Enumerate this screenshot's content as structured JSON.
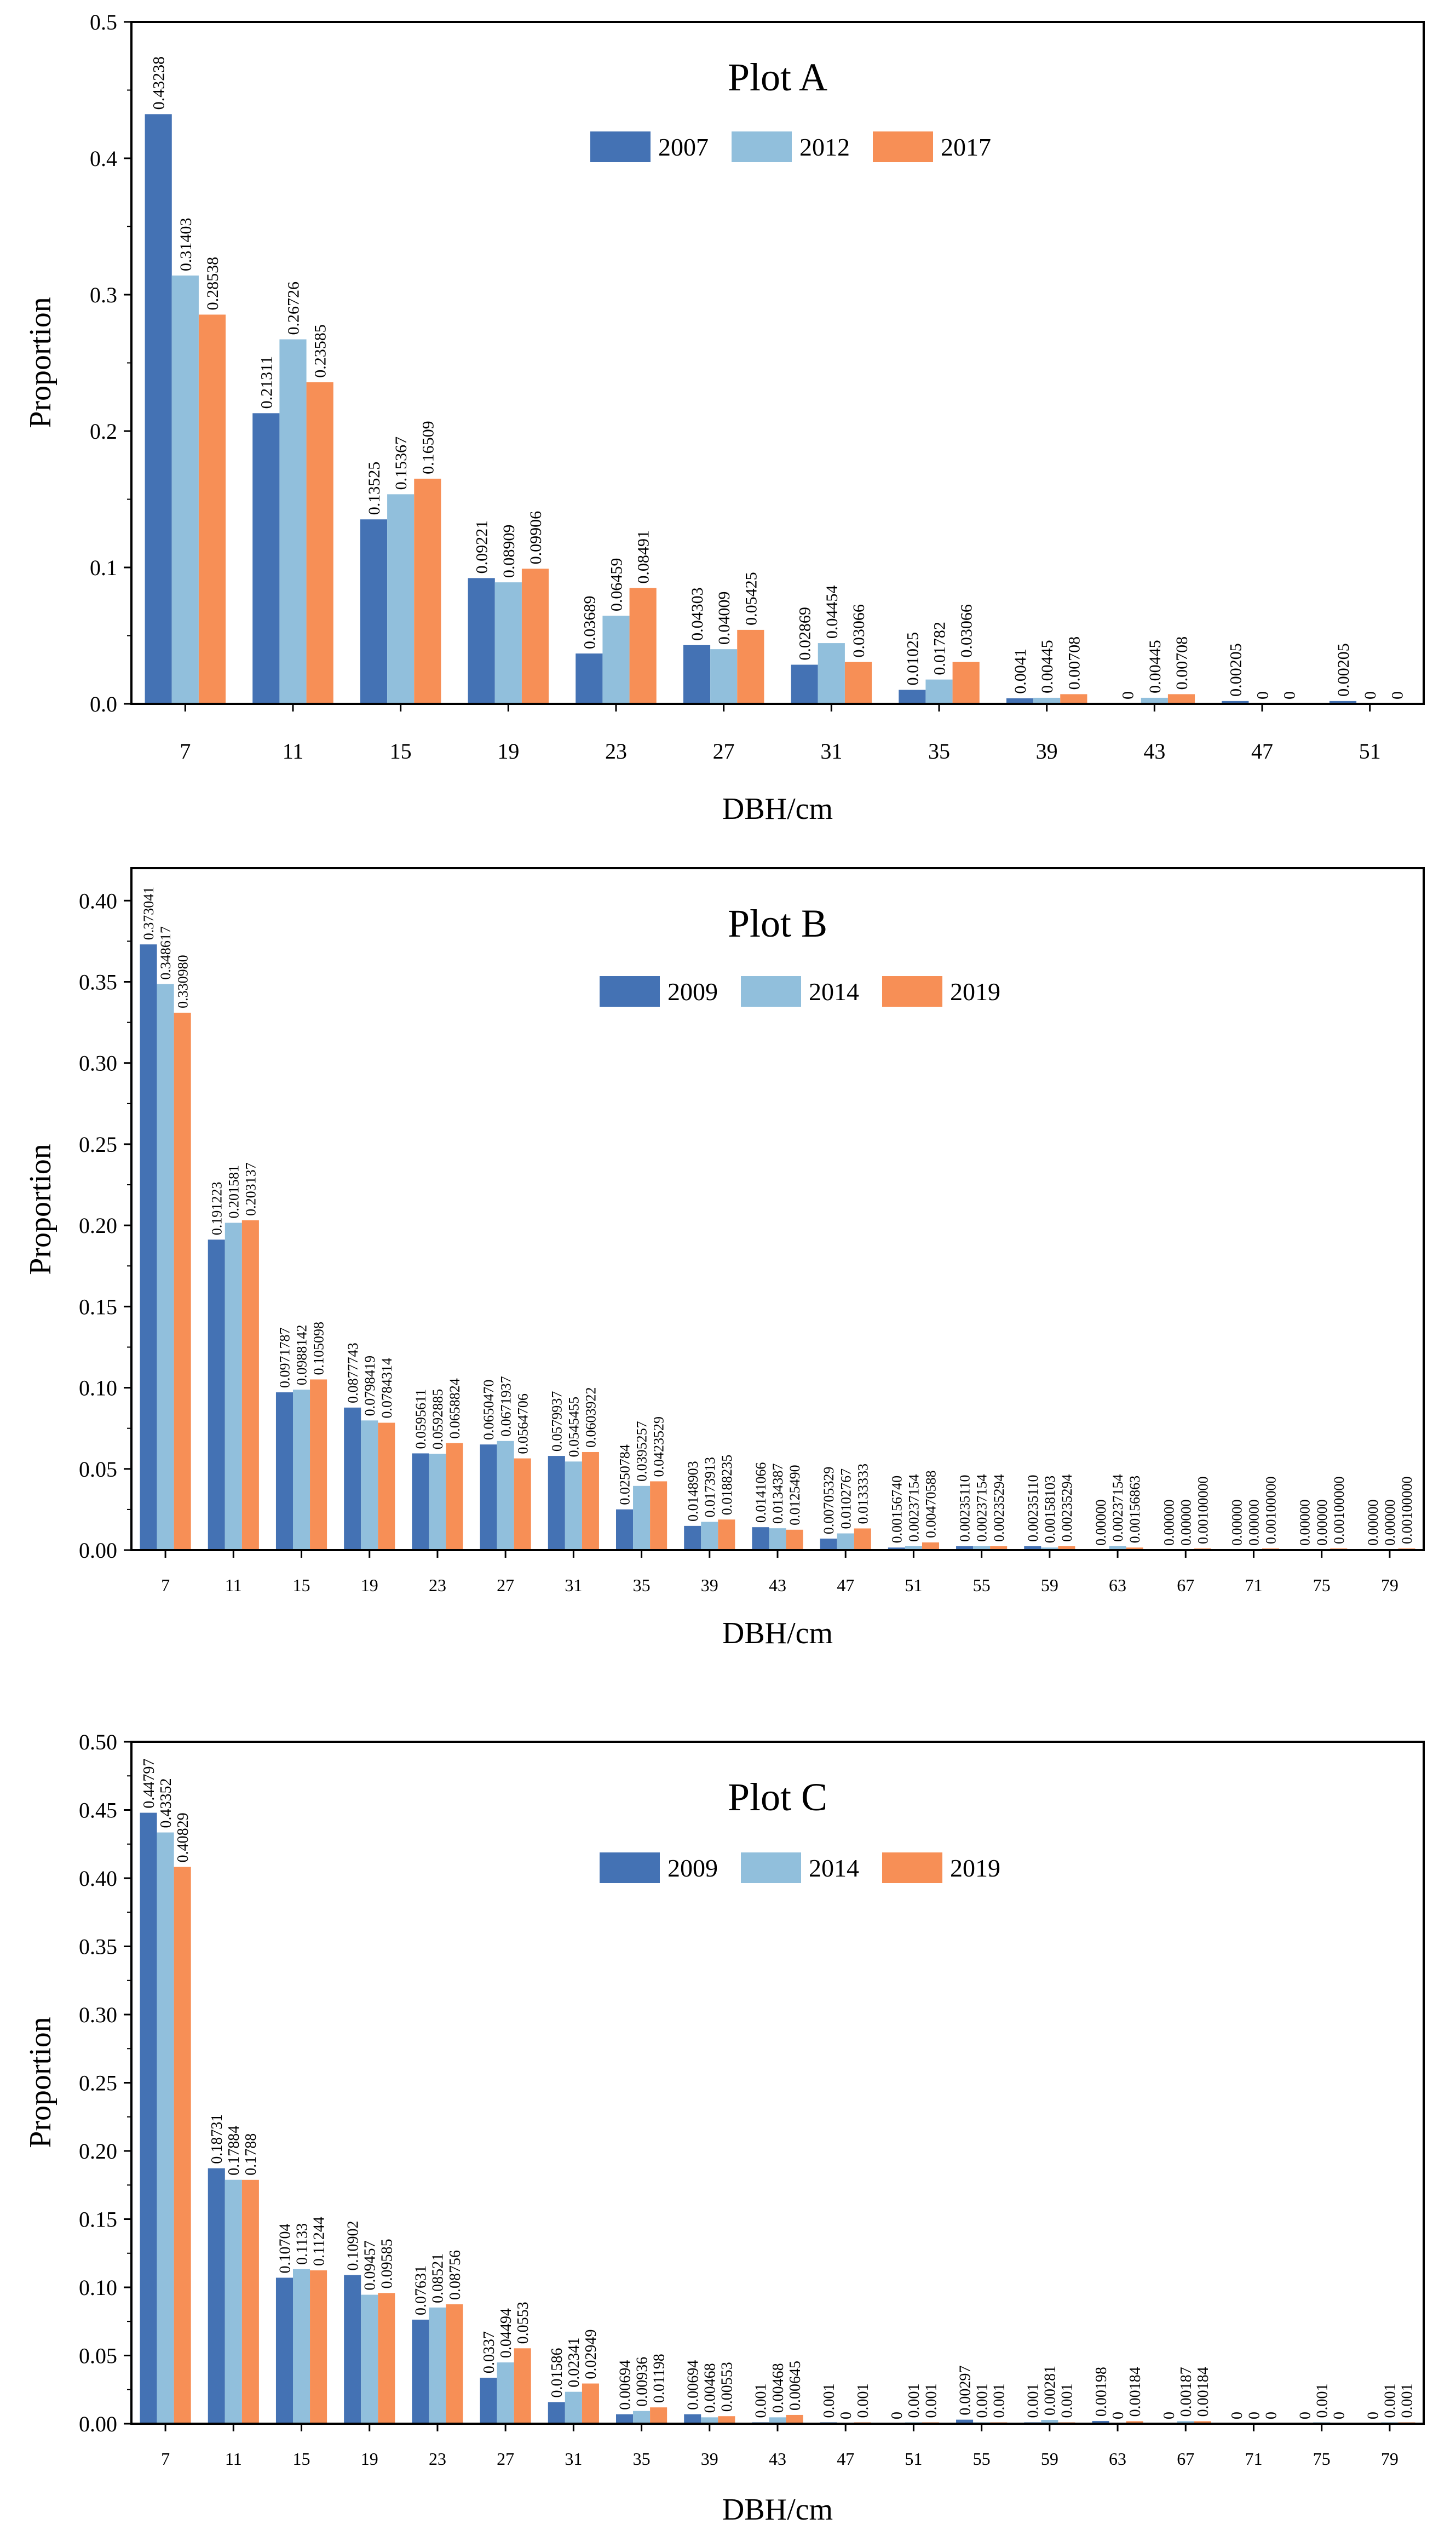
{
  "colors": {
    "series1": "#4472b4",
    "series2": "#91bfdc",
    "series3": "#f78f56",
    "frame": "#000000"
  },
  "chart_data": [
    {
      "type": "bar",
      "title": "Plot A",
      "xlabel": "DBH/cm",
      "ylabel": "Proportion",
      "ylim": [
        0,
        0.5
      ],
      "yticks": [
        "0.0",
        "0.1",
        "0.2",
        "0.3",
        "0.4",
        "0.5"
      ],
      "categories": [
        "7",
        "11",
        "15",
        "19",
        "23",
        "27",
        "31",
        "35",
        "39",
        "43",
        "47",
        "51"
      ],
      "legend_position": "top-center",
      "series": [
        {
          "name": "2007",
          "values": [
            0.43238,
            0.21311,
            0.13525,
            0.09221,
            0.03689,
            0.04303,
            0.02869,
            0.01025,
            0.0041,
            0,
            0.00205,
            0.00205
          ],
          "labels": [
            "0.43238",
            "0.21311",
            "0.13525",
            "0.09221",
            "0.03689",
            "0.04303",
            "0.02869",
            "0.01025",
            "0.0041",
            "0",
            "0.00205",
            "0.00205"
          ]
        },
        {
          "name": "2012",
          "values": [
            0.31403,
            0.26726,
            0.15367,
            0.08909,
            0.06459,
            0.04009,
            0.04454,
            0.01782,
            0.00445,
            0.00445,
            0,
            0
          ],
          "labels": [
            "0.31403",
            "0.26726",
            "0.15367",
            "0.08909",
            "0.06459",
            "0.04009",
            "0.04454",
            "0.01782",
            "0.00445",
            "0.00445",
            "0",
            "0"
          ]
        },
        {
          "name": "2017",
          "values": [
            0.28538,
            0.23585,
            0.16509,
            0.09906,
            0.08491,
            0.05425,
            0.03066,
            0.03066,
            0.00708,
            0.00708,
            0,
            0
          ],
          "labels": [
            "0.28538",
            "0.23585",
            "0.16509",
            "0.09906",
            "0.08491",
            "0.05425",
            "0.03066",
            "0.03066",
            "0.00708",
            "0.00708",
            "0",
            "0"
          ]
        }
      ]
    },
    {
      "type": "bar",
      "title": "Plot B",
      "xlabel": "DBH/cm",
      "ylabel": "Proportion",
      "ylim": [
        0,
        0.42
      ],
      "yticks": [
        "0.00",
        "0.05",
        "0.10",
        "0.15",
        "0.20",
        "0.25",
        "0.30",
        "0.35",
        "0.40"
      ],
      "categories": [
        "7",
        "11",
        "15",
        "19",
        "23",
        "27",
        "31",
        "35",
        "39",
        "43",
        "47",
        "51",
        "55",
        "59",
        "63",
        "67",
        "71",
        "75",
        "79"
      ],
      "legend_position": "top-center",
      "series": [
        {
          "name": "2009",
          "values": [
            0.373041,
            0.191223,
            0.0971787,
            0.0877743,
            0.0595611,
            0.065047,
            0.0579937,
            0.0250784,
            0.0148903,
            0.0141066,
            0.00705329,
            0.0015674,
            0.0023511,
            0.0023511,
            0,
            0,
            0,
            0,
            0
          ],
          "labels": [
            "0.373041",
            "0.191223",
            "0.0971787",
            "0.0877743",
            "0.0595611",
            "0.0650470",
            "0.0579937",
            "0.0250784",
            "0.0148903",
            "0.0141066",
            "0.00705329",
            "0.00156740",
            "0.00235110",
            "0.00235110",
            "0.00000",
            "0.00000",
            "0.00000",
            "0.00000",
            "0.00000"
          ]
        },
        {
          "name": "2014",
          "values": [
            0.348617,
            0.201581,
            0.0988142,
            0.0798419,
            0.0592885,
            0.0671937,
            0.0545455,
            0.0395257,
            0.0173913,
            0.0134387,
            0.0102767,
            0.00237154,
            0.00237154,
            0.00158103,
            0.00237154,
            0,
            0,
            0,
            0
          ],
          "labels": [
            "0.348617",
            "0.201581",
            "0.0988142",
            "0.0798419",
            "0.0592885",
            "0.0671937",
            "0.0545455",
            "0.0395257",
            "0.0173913",
            "0.0134387",
            "0.0102767",
            "0.00237154",
            "0.00237154",
            "0.00158103",
            "0.00237154",
            "0.00000",
            "0.00000",
            "0.00000",
            "0.00000"
          ]
        },
        {
          "name": "2019",
          "values": [
            0.33098,
            0.203137,
            0.105098,
            0.0784314,
            0.0658824,
            0.0564706,
            0.0603922,
            0.0423529,
            0.0188235,
            0.012549,
            0.0133333,
            0.00470588,
            0.00235294,
            0.00235294,
            0.00156863,
            0.001,
            0.001,
            0.001,
            0.001
          ],
          "labels": [
            "0.330980",
            "0.203137",
            "0.105098",
            "0.0784314",
            "0.0658824",
            "0.0564706",
            "0.0603922",
            "0.0423529",
            "0.0188235",
            "0.0125490",
            "0.0133333",
            "0.00470588",
            "0.00235294",
            "0.00235294",
            "0.00156863",
            "0.00100000",
            "0.00100000",
            "0.00100000",
            "0.00100000"
          ]
        }
      ]
    },
    {
      "type": "bar",
      "title": "Plot C",
      "xlabel": "DBH/cm",
      "ylabel": "Proportion",
      "ylim": [
        0,
        0.5
      ],
      "yticks": [
        "0.00",
        "0.05",
        "0.10",
        "0.15",
        "0.20",
        "0.25",
        "0.30",
        "0.35",
        "0.40",
        "0.45",
        "0.50"
      ],
      "categories": [
        "7",
        "11",
        "15",
        "19",
        "23",
        "27",
        "31",
        "35",
        "39",
        "43",
        "47",
        "51",
        "55",
        "59",
        "63",
        "67",
        "71",
        "75",
        "79"
      ],
      "legend_position": "top-center",
      "series": [
        {
          "name": "2009",
          "values": [
            0.44797,
            0.18731,
            0.10704,
            0.10902,
            0.07631,
            0.0337,
            0.01586,
            0.00694,
            0.00694,
            0.001,
            0.001,
            0,
            0.00297,
            0.001,
            0.00198,
            0,
            0,
            0,
            0
          ],
          "labels": [
            "0.44797",
            "0.18731",
            "0.10704",
            "0.10902",
            "0.07631",
            "0.0337",
            "0.01586",
            "0.00694",
            "0.00694",
            "0.001",
            "0.001",
            "0",
            "0.00297",
            "0.001",
            "0.00198",
            "0",
            "0",
            "0",
            "0"
          ]
        },
        {
          "name": "2014",
          "values": [
            0.43352,
            0.17884,
            0.1133,
            0.09457,
            0.08521,
            0.04494,
            0.02341,
            0.00936,
            0.00468,
            0.00468,
            0,
            0.001,
            0.001,
            0.00281,
            0,
            0.00187,
            0,
            0.001,
            0.001
          ],
          "labels": [
            "0.43352",
            "0.17884",
            "0.1133",
            "0.09457",
            "0.08521",
            "0.04494",
            "0.02341",
            "0.00936",
            "0.00468",
            "0.00468",
            "0",
            "0.001",
            "0.001",
            "0.00281",
            "0",
            "0.00187",
            "0",
            "0.001",
            "0.001"
          ]
        },
        {
          "name": "2019",
          "values": [
            0.40829,
            0.1788,
            0.11244,
            0.09585,
            0.08756,
            0.0553,
            0.02949,
            0.01198,
            0.00553,
            0.00645,
            0.001,
            0.001,
            0.001,
            0.001,
            0.00184,
            0.00184,
            0,
            0,
            0.001
          ],
          "labels": [
            "0.40829",
            "0.1788",
            "0.11244",
            "0.09585",
            "0.08756",
            "0.0553",
            "0.02949",
            "0.01198",
            "0.00553",
            "0.00645",
            "0.001",
            "0.001",
            "0.001",
            "0.001",
            "0.00184",
            "0.00184",
            "0",
            "0",
            "0.001"
          ]
        }
      ]
    }
  ]
}
